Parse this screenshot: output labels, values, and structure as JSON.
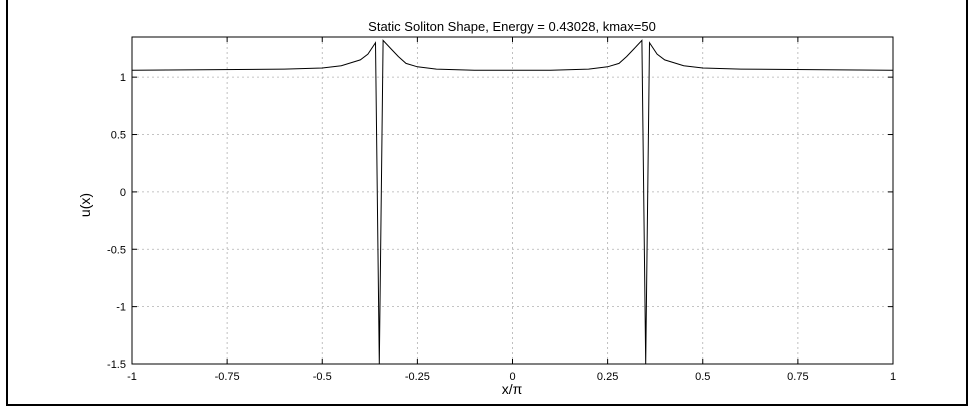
{
  "chart_data": {
    "type": "line",
    "title": "Static Soliton Shape, Energy = 0.43028, kmax=50",
    "xlabel": "x/π",
    "ylabel": "u(x)",
    "xlim": [
      -1,
      1
    ],
    "ylim": [
      -1.5,
      1.35
    ],
    "grid": true,
    "x_ticks": [
      -1,
      -0.75,
      -0.5,
      -0.25,
      0,
      0.25,
      0.5,
      0.75,
      1
    ],
    "x_tick_labels": [
      "-1",
      "-0.75",
      "-0.5",
      "-0.25",
      "0",
      "0.25",
      "0.5",
      "0.75",
      "1"
    ],
    "y_ticks": [
      1,
      0.5,
      0,
      -0.5,
      -1,
      -1.5
    ],
    "y_tick_labels": [
      "1",
      "0.5",
      "0",
      "-0.5",
      "-1",
      "-1.5"
    ],
    "series": [
      {
        "color": "#000000",
        "x": [
          -1,
          -0.6,
          -0.5,
          -0.45,
          -0.4,
          -0.38,
          -0.36,
          -0.35,
          -0.34,
          -0.32,
          -0.3,
          -0.28,
          -0.25,
          -0.2,
          -0.1,
          0,
          0.1,
          0.2,
          0.25,
          0.28,
          0.3,
          0.32,
          0.34,
          0.35,
          0.36,
          0.38,
          0.4,
          0.45,
          0.5,
          0.6,
          1
        ],
        "values": [
          1.06,
          1.07,
          1.08,
          1.1,
          1.15,
          1.2,
          1.3,
          -1.5,
          1.32,
          1.25,
          1.18,
          1.12,
          1.09,
          1.07,
          1.06,
          1.06,
          1.06,
          1.07,
          1.09,
          1.12,
          1.18,
          1.25,
          1.32,
          -1.5,
          1.3,
          1.2,
          1.15,
          1.1,
          1.08,
          1.07,
          1.06
        ]
      }
    ]
  }
}
